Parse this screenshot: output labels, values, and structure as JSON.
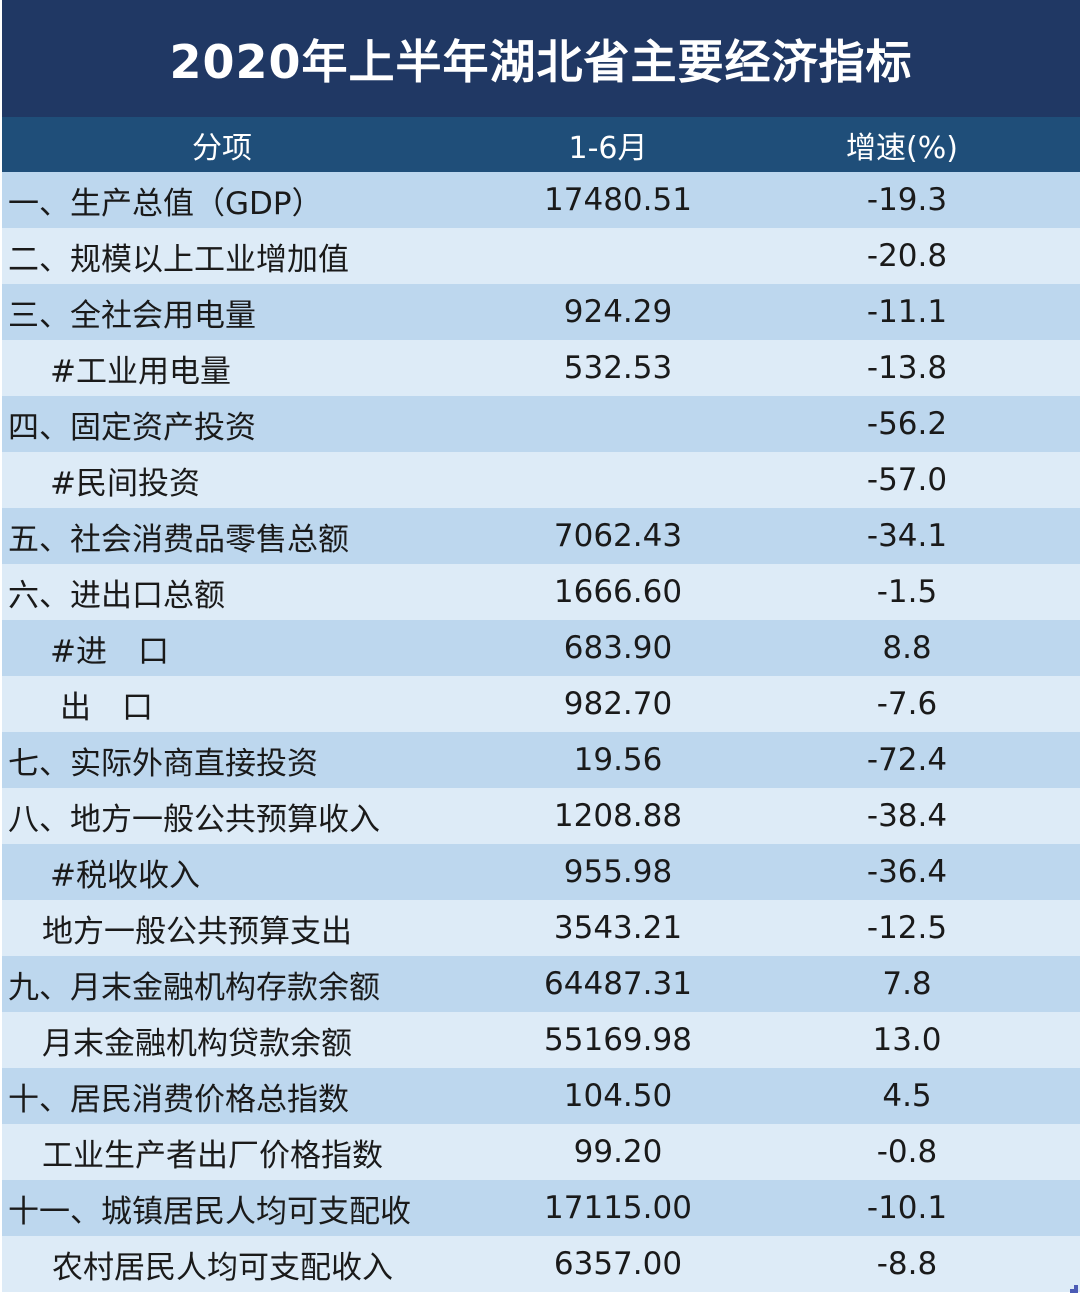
{
  "title": "2020年上半年湖北省主要经济指标",
  "header": {
    "item": "分项",
    "period": "1-6月",
    "growth": "增速(%)"
  },
  "rows": [
    {
      "item": "一、生产总值（GDP）",
      "value": "17480.51",
      "growth": "-19.3"
    },
    {
      "item": "二、规模以上工业增加值",
      "value": "",
      "growth": "-20.8"
    },
    {
      "item": "三、全社会用电量",
      "value": "924.29",
      "growth": "-11.1"
    },
    {
      "item": "#工业用电量",
      "value": "532.53",
      "growth": "-13.8"
    },
    {
      "item": "四、固定资产投资",
      "value": "",
      "growth": "-56.2"
    },
    {
      "item": "#民间投资",
      "value": "",
      "growth": "-57.0"
    },
    {
      "item": "五、社会消费品零售总额",
      "value": "7062.43",
      "growth": "-34.1"
    },
    {
      "item": "六、进出口总额",
      "value": "1666.60",
      "growth": "-1.5"
    },
    {
      "item": "#进　口",
      "value": "683.90",
      "growth": "8.8"
    },
    {
      "item": "出　口",
      "value": "982.70",
      "growth": "-7.6"
    },
    {
      "item": "七、实际外商直接投资",
      "value": "19.56",
      "growth": "-72.4"
    },
    {
      "item": "八、地方一般公共预算收入",
      "value": "1208.88",
      "growth": "-38.4"
    },
    {
      "item": "#税收收入",
      "value": "955.98",
      "growth": "-36.4"
    },
    {
      "item": "地方一般公共预算支出",
      "value": "3543.21",
      "growth": "-12.5"
    },
    {
      "item": "九、月末金融机构存款余额",
      "value": "64487.31",
      "growth": "7.8"
    },
    {
      "item": "月末金融机构贷款余额",
      "value": "55169.98",
      "growth": "13.0"
    },
    {
      "item": "十、居民消费价格总指数",
      "value": "104.50",
      "growth": "4.5"
    },
    {
      "item": "工业生产者出厂价格指数",
      "value": "99.20",
      "growth": "-0.8"
    },
    {
      "item": "十一、城镇居民人均可支配收",
      "value": "17115.00",
      "growth": "-10.1"
    },
    {
      "item": "农村居民人均可支配收入",
      "value": "6357.00",
      "growth": "-8.8"
    }
  ],
  "colors": {
    "title_bg": "#203864",
    "header_bg": "#1f4e79",
    "row_odd": "#bdd7ee",
    "row_even": "#ddebf7"
  }
}
